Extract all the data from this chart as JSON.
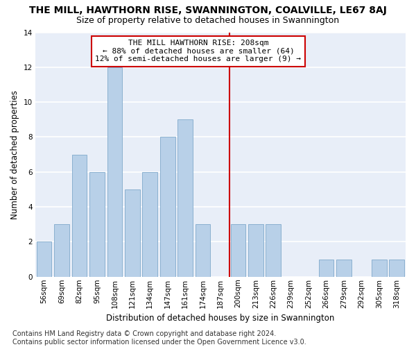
{
  "title": "THE MILL, HAWTHORN RISE, SWANNINGTON, COALVILLE, LE67 8AJ",
  "subtitle": "Size of property relative to detached houses in Swannington",
  "xlabel": "Distribution of detached houses by size in Swannington",
  "ylabel": "Number of detached properties",
  "footnote": "Contains HM Land Registry data © Crown copyright and database right 2024.\nContains public sector information licensed under the Open Government Licence v3.0.",
  "categories": [
    "56sqm",
    "69sqm",
    "82sqm",
    "95sqm",
    "108sqm",
    "121sqm",
    "134sqm",
    "147sqm",
    "161sqm",
    "174sqm",
    "187sqm",
    "200sqm",
    "213sqm",
    "226sqm",
    "239sqm",
    "252sqm",
    "266sqm",
    "279sqm",
    "292sqm",
    "305sqm",
    "318sqm"
  ],
  "values": [
    2,
    3,
    7,
    6,
    12,
    5,
    6,
    8,
    9,
    3,
    0,
    3,
    3,
    3,
    0,
    0,
    1,
    1,
    0,
    1,
    1
  ],
  "bar_color": "#b8d0e8",
  "bar_edge_color": "#8ab0d0",
  "vline_index": 11,
  "vline_color": "#cc0000",
  "annotation_text": "THE MILL HAWTHORN RISE: 208sqm\n← 88% of detached houses are smaller (64)\n12% of semi-detached houses are larger (9) →",
  "ylim": [
    0,
    14
  ],
  "yticks": [
    0,
    2,
    4,
    6,
    8,
    10,
    12,
    14
  ],
  "fig_bg_color": "#ffffff",
  "plot_bg_color": "#e8eef8",
  "grid_color": "#ffffff",
  "title_fontsize": 10,
  "subtitle_fontsize": 9,
  "axis_label_fontsize": 8.5,
  "tick_fontsize": 7.5,
  "annotation_fontsize": 8,
  "footnote_fontsize": 7
}
